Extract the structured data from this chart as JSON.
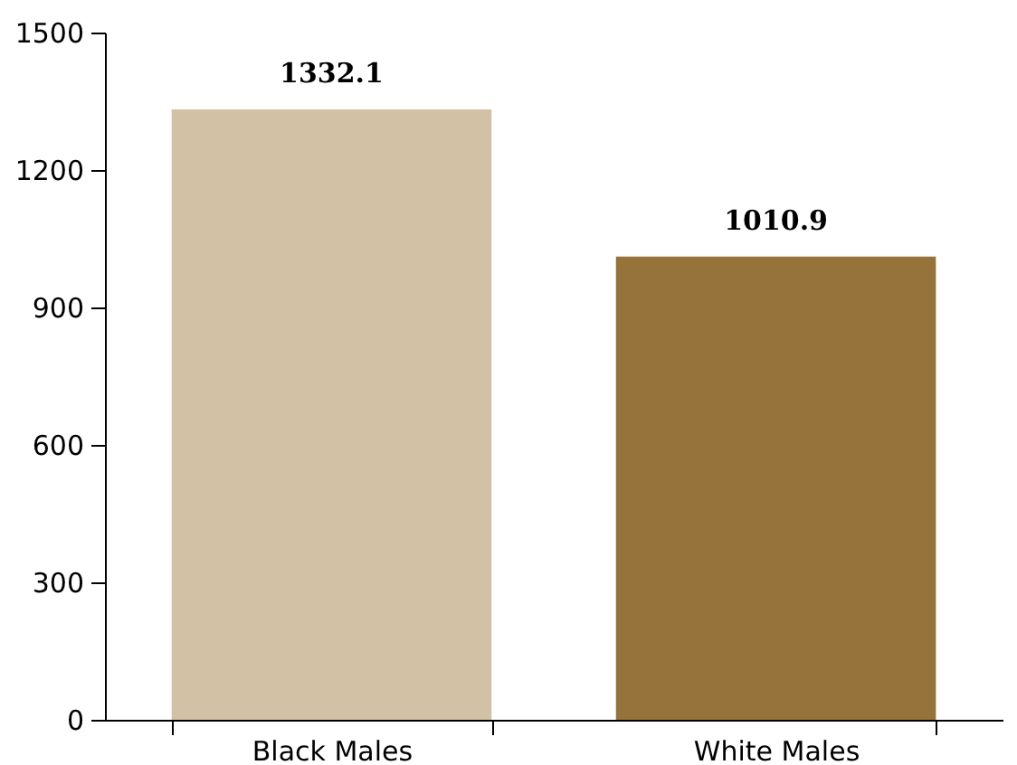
{
  "chart_data": {
    "type": "bar",
    "categories": [
      "Black Males",
      "White Males"
    ],
    "values": [
      1332.1,
      1010.9
    ],
    "colors": [
      "#d3c1a5",
      "#96733a"
    ],
    "ylim": [
      0,
      1500
    ],
    "yticks": [
      0,
      300,
      600,
      900,
      1200,
      1500
    ],
    "data_labels": true,
    "grid": false
  }
}
